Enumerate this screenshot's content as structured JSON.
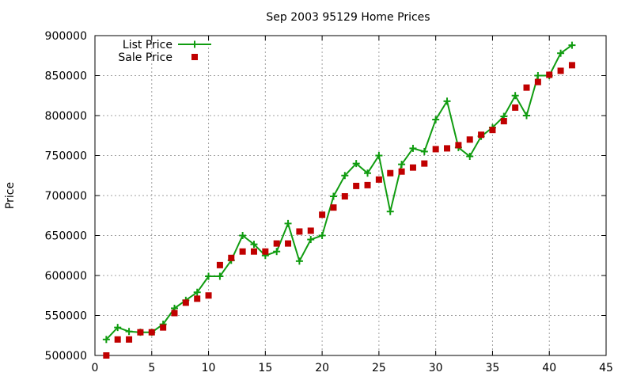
{
  "chart_data": {
    "type": "line",
    "title": "Sep 2003 95129 Home Prices",
    "xlabel": "",
    "ylabel": "Price",
    "xlim": [
      0,
      45
    ],
    "ylim": [
      500000,
      900000
    ],
    "xticks": [
      0,
      5,
      10,
      15,
      20,
      25,
      30,
      35,
      40,
      45
    ],
    "yticks": [
      500000,
      550000,
      600000,
      650000,
      700000,
      750000,
      800000,
      850000,
      900000
    ],
    "xtick_labels": [
      "0",
      "5",
      "10",
      "15",
      "20",
      "25",
      "30",
      "35",
      "40",
      "45"
    ],
    "ytick_labels": [
      "500000",
      "550000",
      "600000",
      "650000",
      "700000",
      "750000",
      "800000",
      "850000",
      "900000"
    ],
    "grid": true,
    "legend_position": "top-left",
    "series": [
      {
        "name": "List Price",
        "style": "line-with-plus",
        "color": "#109c10",
        "x": [
          1,
          2,
          3,
          4,
          5,
          6,
          7,
          8,
          9,
          10,
          11,
          12,
          13,
          14,
          15,
          16,
          17,
          18,
          19,
          20,
          21,
          22,
          23,
          24,
          25,
          26,
          27,
          28,
          29,
          30,
          31,
          32,
          33,
          34,
          35,
          36,
          37,
          38,
          39,
          40,
          41,
          42
        ],
        "y": [
          520000,
          535000,
          530000,
          529000,
          529000,
          539000,
          559000,
          569000,
          579000,
          599000,
          599000,
          619000,
          650000,
          639000,
          625000,
          630000,
          665000,
          618000,
          645000,
          650000,
          699000,
          725000,
          740000,
          728000,
          750000,
          680000,
          739000,
          759000,
          755000,
          795000,
          818000,
          760000,
          749000,
          774000,
          785000,
          799000,
          825000,
          800000,
          850000,
          850000,
          878000,
          888000
        ]
      },
      {
        "name": "Sale Price",
        "style": "square-markers",
        "color": "#c00000",
        "x": [
          1,
          2,
          3,
          4,
          5,
          6,
          7,
          8,
          9,
          10,
          11,
          12,
          13,
          14,
          15,
          16,
          17,
          18,
          19,
          20,
          21,
          22,
          23,
          24,
          25,
          26,
          27,
          28,
          29,
          30,
          31,
          32,
          33,
          34,
          35,
          36,
          37,
          38,
          39,
          40,
          41,
          42
        ],
        "y": [
          500000,
          520000,
          520000,
          529000,
          529000,
          535000,
          553000,
          566000,
          571000,
          575000,
          613000,
          622000,
          630000,
          630000,
          630000,
          640000,
          640000,
          655000,
          656000,
          676000,
          685000,
          699000,
          712000,
          713000,
          720000,
          728000,
          730000,
          735000,
          740000,
          758000,
          759000,
          763000,
          770000,
          776000,
          782000,
          793000,
          810000,
          835000,
          842000,
          851000,
          856000,
          863000
        ]
      }
    ]
  }
}
